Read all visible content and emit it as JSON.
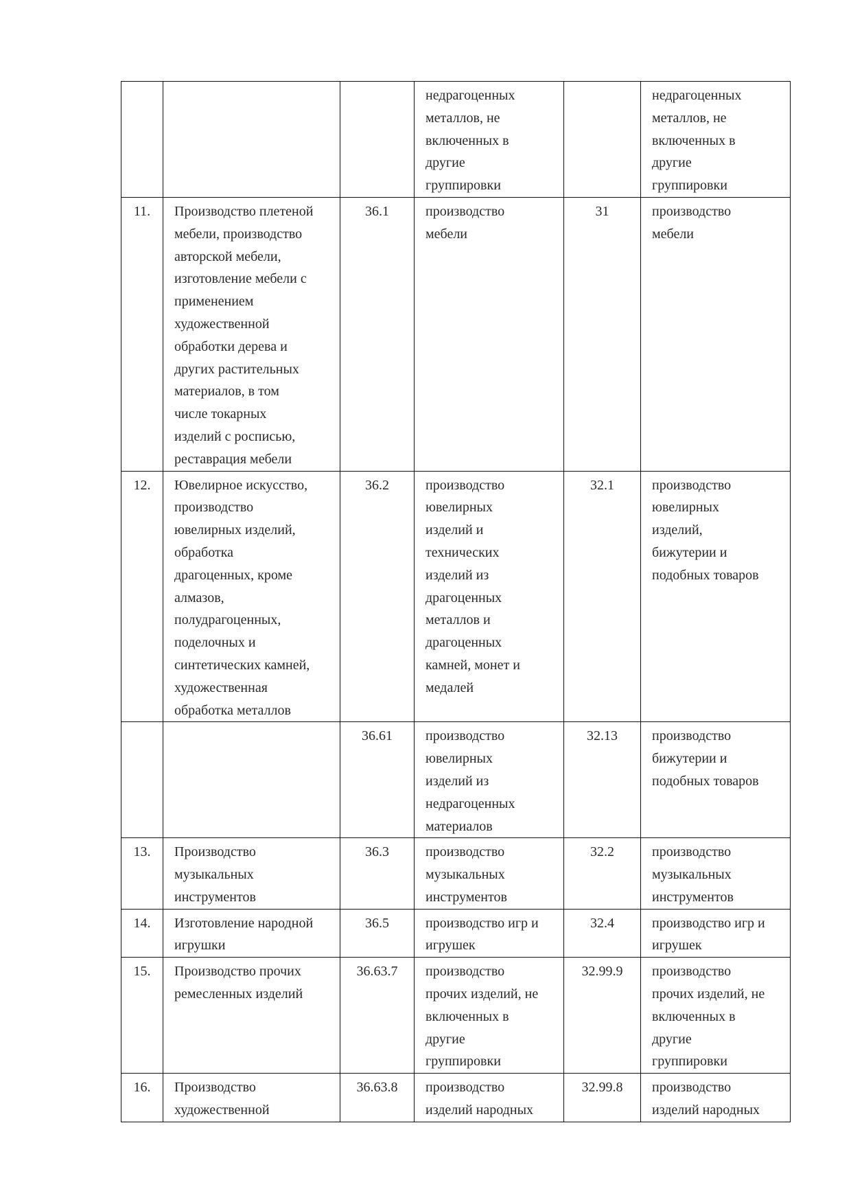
{
  "table": {
    "rows": [
      {
        "num": "",
        "name": "",
        "code_old": "",
        "desc_old": "недрагоценных\nметаллов, не\nвключенных в\nдругие\nгруппировки",
        "code_new": "",
        "desc_new": "недрагоценных\nметаллов, не\nвключенных в\nдругие\nгруппировки"
      },
      {
        "num": "11.",
        "name": "Производство плетеной\nмебели, производство\nавторской мебели,\nизготовление мебели с\nприменением\nхудожественной\nобработки дерева и\nдругих растительных\nматериалов, в том\nчисле токарных\nизделий с росписью,\nреставрация мебели",
        "code_old": "36.1",
        "desc_old": "производство\nмебели",
        "code_new": "31",
        "desc_new": "производство\nмебели"
      },
      {
        "num": "12.",
        "name": "Ювелирное искусство,\nпроизводство\nювелирных изделий,\nобработка\nдрагоценных, кроме\nалмазов,\nполудрагоценных,\nподелочных и\nсинтетических камней,\nхудожественная\nобработка металлов",
        "code_old": "36.2",
        "desc_old": "производство\nювелирных\nизделий и\nтехнических\nизделий из\nдрагоценных\nметаллов и\nдрагоценных\nкамней, монет и\nмедалей",
        "code_new": "32.1",
        "desc_new": "производство\nювелирных\nизделий,\nбижутерии и\nподобных товаров"
      },
      {
        "num": "",
        "name": "",
        "code_old": "36.61",
        "desc_old": "производство\nювелирных\nизделий из\nнедрагоценных\nматериалов",
        "code_new": "32.13",
        "desc_new": "производство\nбижутерии и\nподобных товаров"
      },
      {
        "num": "13.",
        "name": "Производство\nмузыкальных\nинструментов",
        "code_old": "36.3",
        "desc_old": "производство\nмузыкальных\nинструментов",
        "code_new": "32.2",
        "desc_new": "производство\nмузыкальных\nинструментов"
      },
      {
        "num": "14.",
        "name": "Изготовление народной\nигрушки",
        "code_old": "36.5",
        "desc_old": "производство игр и\nигрушек",
        "code_new": "32.4",
        "desc_new": "производство игр и\nигрушек"
      },
      {
        "num": "15.",
        "name": "Производство прочих\nремесленных изделий",
        "code_old": "36.63.7",
        "desc_old": "производство\nпрочих изделий, не\nвключенных в\nдругие\nгруппировки",
        "code_new": "32.99.9",
        "desc_new": "производство\nпрочих изделий, не\nвключенных в\nдругие\nгруппировки"
      },
      {
        "num": "16.",
        "name": "Производство\nхудожественной",
        "code_old": "36.63.8",
        "desc_old": "производство\nизделий народных",
        "code_new": "32.99.8",
        "desc_new": "производство\nизделий народных"
      }
    ]
  }
}
